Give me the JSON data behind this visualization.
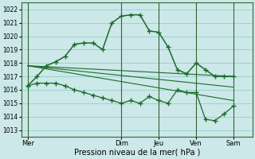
{
  "background_color": "#cce8e8",
  "grid_color": "#99cccc",
  "line_color": "#1a6b2a",
  "title": "Pression niveau de la mer( hPa )",
  "ylim": [
    1012.5,
    1022.5
  ],
  "yticks": [
    1013,
    1014,
    1015,
    1016,
    1017,
    1018,
    1019,
    1020,
    1021,
    1022
  ],
  "x_day_labels": [
    "Mer",
    "Dim",
    "Jeu",
    "Ven",
    "Sam"
  ],
  "x_day_positions": [
    0,
    60,
    84,
    108,
    132
  ],
  "xlim": [
    -4,
    144
  ],
  "main_x": [
    0,
    6,
    12,
    18,
    24,
    30,
    36,
    42,
    48,
    54,
    60,
    66,
    72,
    78,
    84,
    90,
    96,
    102,
    108,
    114,
    120,
    126,
    132
  ],
  "main_y": [
    1016.3,
    1017.0,
    1017.8,
    1018.1,
    1018.5,
    1019.4,
    1019.5,
    1019.5,
    1019.0,
    1021.0,
    1021.5,
    1021.6,
    1021.6,
    1020.4,
    1020.3,
    1019.2,
    1017.5,
    1017.2,
    1018.0,
    1017.5,
    1017.0,
    1017.0,
    1017.0
  ],
  "trend1_x": [
    0,
    132
  ],
  "trend1_y": [
    1017.8,
    1017.0
  ],
  "trend2_x": [
    0,
    132
  ],
  "trend2_y": [
    1017.8,
    1016.2
  ],
  "trend3_x": [
    0,
    132
  ],
  "trend3_y": [
    1017.8,
    1015.2
  ],
  "lower_x": [
    0,
    6,
    12,
    18,
    24,
    30,
    36,
    42,
    48,
    54,
    60,
    66,
    72,
    78,
    84,
    90,
    96,
    102,
    108,
    114,
    120,
    126,
    132
  ],
  "lower_y": [
    1016.3,
    1016.5,
    1016.5,
    1016.5,
    1016.3,
    1016.0,
    1015.8,
    1015.6,
    1015.4,
    1015.2,
    1015.0,
    1015.2,
    1015.0,
    1015.5,
    1015.2,
    1015.0,
    1016.0,
    1015.8,
    1015.8,
    1013.8,
    1013.7,
    1014.2,
    1014.8
  ]
}
